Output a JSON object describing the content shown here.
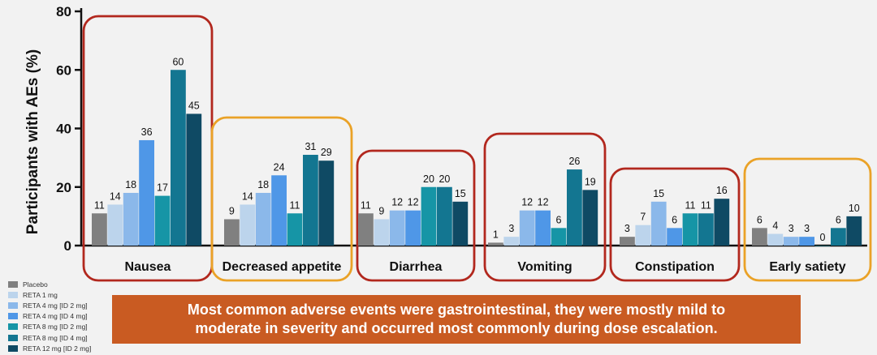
{
  "chart_data": {
    "type": "bar",
    "ylabel": "Participants with AEs (%)",
    "ylim": [
      0,
      80
    ],
    "yticks": [
      0,
      20,
      40,
      60,
      80
    ],
    "grid": false,
    "legend_position": "bottom-left",
    "categories": [
      "Nausea",
      "Decreased appetite",
      "Diarrhea",
      "Vomiting",
      "Constipation",
      "Early satiety"
    ],
    "category_box_colors": [
      "#b2281e",
      "#eaa227",
      "#b2281e",
      "#b2281e",
      "#b2281e",
      "#eaa227"
    ],
    "series": [
      {
        "name": "Placebo",
        "color": "#808080",
        "values": [
          11,
          9,
          11,
          1,
          3,
          6
        ]
      },
      {
        "name": "RETA 1 mg",
        "color": "#bcd4ec",
        "values": [
          14,
          14,
          9,
          3,
          7,
          4
        ]
      },
      {
        "name": "RETA 4 mg [ID 2 mg]",
        "color": "#8bb8ea",
        "values": [
          18,
          18,
          12,
          12,
          15,
          3
        ]
      },
      {
        "name": "RETA 4 mg [ID 4 mg]",
        "color": "#4f97e7",
        "values": [
          36,
          24,
          12,
          12,
          6,
          3
        ]
      },
      {
        "name": "RETA 8 mg [ID 2 mg]",
        "color": "#1695a6",
        "values": [
          17,
          11,
          20,
          6,
          11,
          0
        ]
      },
      {
        "name": "RETA 8 mg [ID 4 mg]",
        "color": "#137691",
        "values": [
          60,
          31,
          20,
          26,
          11,
          6
        ]
      },
      {
        "name": "RETA 12 mg [ID 2 mg]",
        "color": "#0f4a64",
        "values": [
          45,
          29,
          15,
          19,
          16,
          10
        ]
      }
    ]
  },
  "callout": {
    "line1": "Most common adverse events were gastrointestinal, they were mostly mild to",
    "line2": "moderate in severity and occurred most commonly during dose escalation.",
    "background": "#c95b22"
  }
}
